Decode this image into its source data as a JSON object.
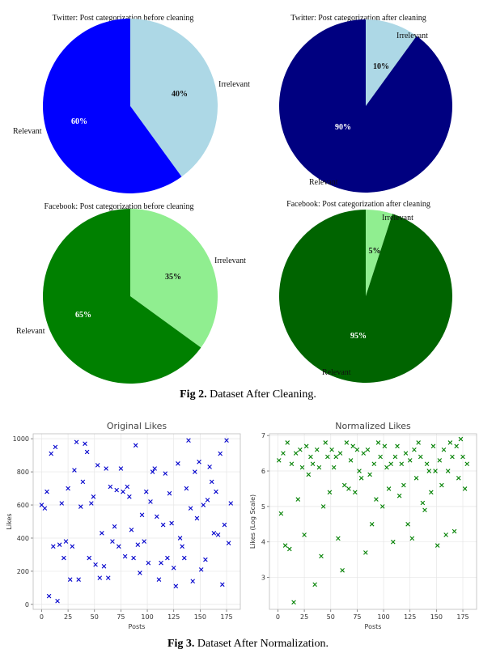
{
  "pie_charts": [
    {
      "title": "Twitter: Post categorization before cleaning",
      "slices": [
        {
          "label": "Irrelevant",
          "value": 40,
          "pct": "40%",
          "color": "#add8e6",
          "pct_color": "#111111"
        },
        {
          "label": "Relevant",
          "value": 60,
          "pct": "60%",
          "color": "#0000ff",
          "pct_color": "#ffffff"
        }
      ]
    },
    {
      "title": "Twitter: Post categorization after cleaning",
      "slices": [
        {
          "label": "Irrelevant",
          "value": 10,
          "pct": "10%",
          "color": "#add8e6",
          "pct_color": "#111111"
        },
        {
          "label": "Relevant",
          "value": 90,
          "pct": "90%",
          "color": "#000080",
          "pct_color": "#ffffff"
        }
      ]
    },
    {
      "title": "Facebook: Post categorization before cleaning",
      "slices": [
        {
          "label": "Irrelevant",
          "value": 35,
          "pct": "35%",
          "color": "#90ee90",
          "pct_color": "#111111"
        },
        {
          "label": "Relevant",
          "value": 65,
          "pct": "65%",
          "color": "#008000",
          "pct_color": "#ffffff"
        }
      ]
    },
    {
      "title": "Facebook: Post categorization after cleaning",
      "slices": [
        {
          "label": "Irrelevant",
          "value": 5,
          "pct": "5%",
          "color": "#90ee90",
          "pct_color": "#111111"
        },
        {
          "label": "Relevant",
          "value": 95,
          "pct": "95%",
          "color": "#006400",
          "pct_color": "#ffffff"
        }
      ]
    }
  ],
  "captions": {
    "fig2": {
      "bold": "Fig 2.",
      "text": " Dataset After Cleaning."
    },
    "fig3": {
      "bold": "Fig 3.",
      "text": " Dataset After Normalization."
    }
  },
  "chart_data": [
    {
      "type": "scatter",
      "title": "Original Likes",
      "xlabel": "Posts",
      "ylabel": "Likes",
      "xlim": [
        -8,
        188
      ],
      "ylim": [
        -30,
        1030
      ],
      "xticks": [
        0,
        25,
        50,
        75,
        100,
        125,
        150,
        175
      ],
      "yticks": [
        0,
        200,
        400,
        600,
        800,
        1000
      ],
      "marker": "x",
      "color": "#0000cc",
      "grid": true,
      "x": [
        0,
        3,
        5,
        7,
        9,
        11,
        13,
        15,
        17,
        19,
        21,
        23,
        25,
        27,
        29,
        31,
        33,
        35,
        37,
        39,
        41,
        43,
        45,
        47,
        49,
        51,
        53,
        55,
        57,
        59,
        61,
        63,
        65,
        67,
        69,
        71,
        73,
        75,
        77,
        79,
        81,
        83,
        85,
        87,
        89,
        91,
        93,
        95,
        97,
        99,
        101,
        103,
        105,
        107,
        109,
        111,
        113,
        115,
        117,
        119,
        121,
        123,
        125,
        127,
        129,
        131,
        133,
        135,
        137,
        139,
        141,
        143,
        145,
        147,
        149,
        151,
        153,
        155,
        157,
        159,
        161,
        163,
        165,
        167,
        169,
        171,
        173,
        175,
        177,
        179
      ],
      "y": [
        600,
        580,
        680,
        50,
        910,
        350,
        950,
        20,
        360,
        610,
        280,
        380,
        700,
        150,
        350,
        810,
        980,
        150,
        590,
        740,
        970,
        920,
        280,
        610,
        650,
        240,
        840,
        160,
        430,
        230,
        820,
        160,
        710,
        380,
        470,
        690,
        350,
        820,
        680,
        290,
        710,
        650,
        450,
        280,
        960,
        360,
        190,
        540,
        380,
        680,
        250,
        620,
        800,
        820,
        530,
        150,
        250,
        480,
        790,
        280,
        670,
        490,
        220,
        110,
        850,
        400,
        350,
        280,
        700,
        990,
        580,
        140,
        800,
        520,
        860,
        210,
        600,
        270,
        630,
        830,
        740,
        430,
        680,
        420,
        910,
        120,
        480,
        990,
        370,
        610
      ]
    },
    {
      "type": "scatter",
      "title": "Normalized Likes",
      "xlabel": "Posts",
      "ylabel": "Likes (Log Scale)",
      "xlim": [
        -8,
        188
      ],
      "ylim": [
        2.1,
        7.05
      ],
      "xticks": [
        0,
        25,
        50,
        75,
        100,
        125,
        150,
        175
      ],
      "yticks": [
        3,
        4,
        5,
        6,
        7
      ],
      "marker": "x",
      "color": "#008000",
      "grid": true,
      "x": [
        1,
        3,
        5,
        7,
        9,
        11,
        13,
        15,
        17,
        19,
        21,
        23,
        25,
        27,
        29,
        31,
        33,
        35,
        37,
        39,
        41,
        43,
        45,
        47,
        49,
        51,
        53,
        55,
        57,
        59,
        61,
        63,
        65,
        67,
        69,
        71,
        73,
        75,
        77,
        79,
        81,
        83,
        85,
        87,
        89,
        91,
        93,
        95,
        97,
        99,
        101,
        103,
        105,
        107,
        109,
        111,
        113,
        115,
        117,
        119,
        121,
        123,
        125,
        127,
        129,
        131,
        133,
        135,
        137,
        139,
        141,
        143,
        145,
        147,
        149,
        151,
        153,
        155,
        157,
        159,
        161,
        163,
        165,
        167,
        169,
        171,
        173,
        175,
        177,
        179
      ],
      "y": [
        6.3,
        4.8,
        6.5,
        3.9,
        6.8,
        3.8,
        6.2,
        2.3,
        6.5,
        5.2,
        6.6,
        6.1,
        4.2,
        6.7,
        5.9,
        6.4,
        6.2,
        2.8,
        6.6,
        6.1,
        3.6,
        5.0,
        6.8,
        6.4,
        5.4,
        6.6,
        6.1,
        6.4,
        4.1,
        6.5,
        3.2,
        5.6,
        6.8,
        5.5,
        6.3,
        6.7,
        5.4,
        6.6,
        6.0,
        5.8,
        6.5,
        3.7,
        6.6,
        5.9,
        4.5,
        6.2,
        5.2,
        6.8,
        6.4,
        5.0,
        6.7,
        6.1,
        5.5,
        6.2,
        4.0,
        6.4,
        6.7,
        5.3,
        6.2,
        5.6,
        6.5,
        4.5,
        6.3,
        4.1,
        6.6,
        5.8,
        6.8,
        6.4,
        5.1,
        4.9,
        6.2,
        6.0,
        5.4,
        6.7,
        6.0,
        3.9,
        6.3,
        5.6,
        6.6,
        4.2,
        6.0,
        6.8,
        6.4,
        4.3,
        6.7,
        5.8,
        6.9,
        6.4,
        5.5,
        6.2
      ]
    }
  ]
}
